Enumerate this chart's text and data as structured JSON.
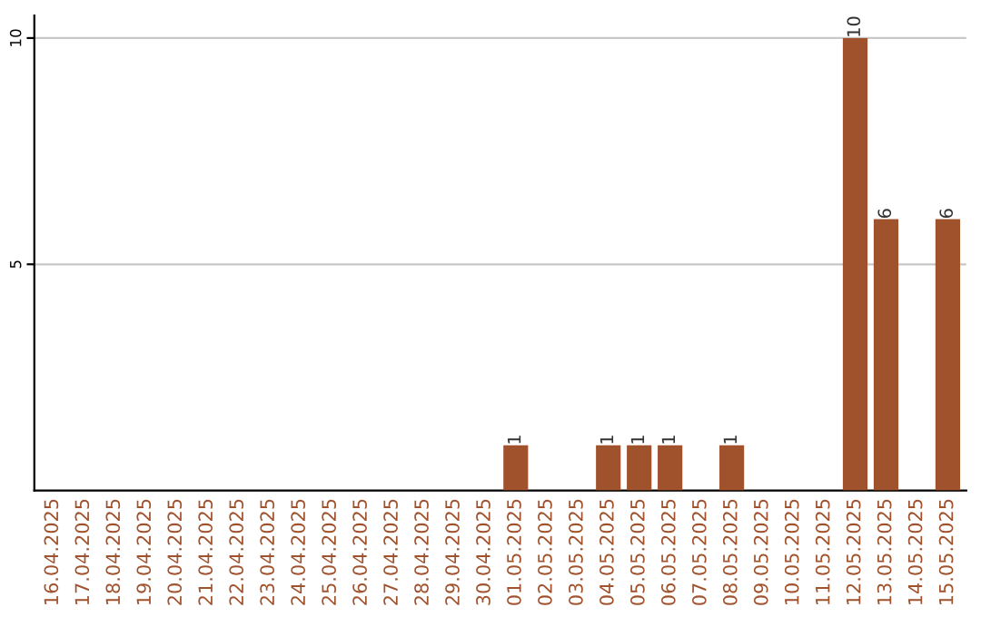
{
  "chart_data": {
    "type": "bar",
    "categories": [
      "16.04.2025",
      "17.04.2025",
      "18.04.2025",
      "19.04.2025",
      "20.04.2025",
      "21.04.2025",
      "22.04.2025",
      "23.04.2025",
      "24.04.2025",
      "25.04.2025",
      "26.04.2025",
      "27.04.2025",
      "28.04.2025",
      "29.04.2025",
      "30.04.2025",
      "01.05.2025",
      "02.05.2025",
      "03.05.2025",
      "04.05.2025",
      "05.05.2025",
      "06.05.2025",
      "07.05.2025",
      "08.05.2025",
      "09.05.2025",
      "10.05.2025",
      "11.05.2025",
      "12.05.2025",
      "13.05.2025",
      "14.05.2025",
      "15.05.2025"
    ],
    "values": [
      0,
      0,
      0,
      0,
      0,
      0,
      0,
      0,
      0,
      0,
      0,
      0,
      0,
      0,
      0,
      1,
      0,
      0,
      1,
      1,
      1,
      0,
      1,
      0,
      0,
      0,
      10,
      6,
      0,
      6
    ],
    "value_labels": [
      null,
      null,
      null,
      null,
      null,
      null,
      null,
      null,
      null,
      null,
      null,
      null,
      null,
      null,
      null,
      "1",
      null,
      null,
      "1",
      "1",
      "1",
      null,
      "1",
      null,
      null,
      null,
      "10",
      "6",
      null,
      "6"
    ],
    "color": "#a0522d",
    "ylim": [
      0,
      10.5
    ],
    "yticks": [
      5,
      10
    ],
    "grid": "y"
  }
}
